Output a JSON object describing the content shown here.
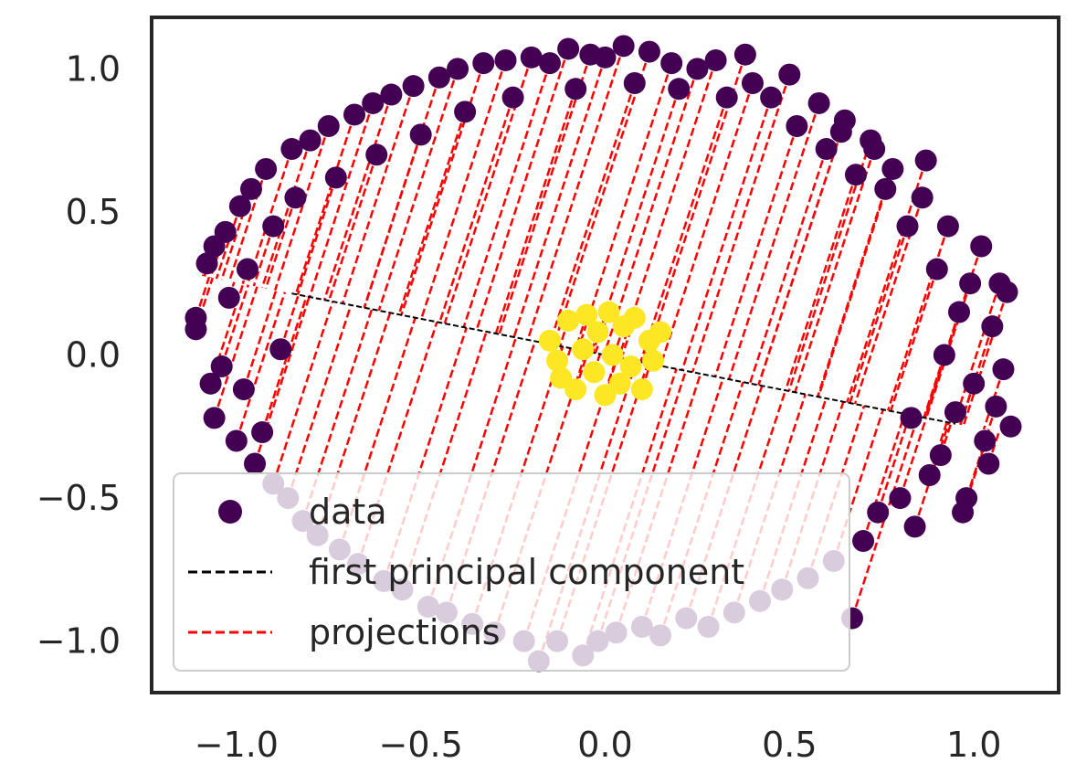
{
  "chart_data": {
    "type": "scatter",
    "title": "",
    "xlabel": "",
    "ylabel": "",
    "xlim": [
      -1.23,
      1.23
    ],
    "ylim": [
      -1.18,
      1.18
    ],
    "x_ticks": [
      -1.0,
      -0.5,
      0.0,
      0.5,
      1.0
    ],
    "y_ticks": [
      -1.0,
      -0.5,
      0.0,
      0.5,
      1.0
    ],
    "x_tick_labels": [
      "−1.0",
      "−0.5",
      "0.0",
      "0.5",
      "1.0"
    ],
    "y_tick_labels": [
      "−1.0",
      "−0.5",
      "0.0",
      "0.5",
      "1.0"
    ],
    "grid": false,
    "legend_position": "lower-left",
    "legend": [
      {
        "label": "data",
        "kind": "marker",
        "color": "#440154"
      },
      {
        "label": "first principal component",
        "kind": "dashed-line",
        "color": "#000000"
      },
      {
        "label": "projections",
        "kind": "dashed-line",
        "color": "#ff0000"
      }
    ],
    "colors": {
      "outer_class": "#440154",
      "inner_class": "#fde725",
      "first_principal_component": "#000000",
      "projections": "#ff0000"
    },
    "first_principal_component": {
      "slope": -0.253,
      "x_range": [
        -0.85,
        0.95
      ]
    },
    "series": [
      {
        "name": "data",
        "class": "outer",
        "points": [
          [
            -1.11,
            0.13
          ],
          [
            -1.11,
            0.09
          ],
          [
            -1.08,
            0.32
          ],
          [
            -1.06,
            0.38
          ],
          [
            -1.07,
            -0.1
          ],
          [
            -1.06,
            -0.22
          ],
          [
            -1.04,
            -0.04
          ],
          [
            -1.03,
            0.43
          ],
          [
            -1.02,
            0.2
          ],
          [
            -1.0,
            -0.3
          ],
          [
            -0.99,
            0.52
          ],
          [
            -0.98,
            -0.12
          ],
          [
            -0.97,
            0.3
          ],
          [
            -0.96,
            0.58
          ],
          [
            -0.95,
            -0.38
          ],
          [
            -0.93,
            -0.27
          ],
          [
            -0.92,
            0.65
          ],
          [
            -0.9,
            0.45
          ],
          [
            -0.9,
            -0.45
          ],
          [
            -0.88,
            0.02
          ],
          [
            -0.86,
            -0.5
          ],
          [
            -0.85,
            0.72
          ],
          [
            -0.84,
            0.55
          ],
          [
            -0.82,
            -0.58
          ],
          [
            -0.8,
            0.75
          ],
          [
            -0.78,
            -0.63
          ],
          [
            -0.75,
            0.8
          ],
          [
            -0.73,
            0.62
          ],
          [
            -0.72,
            -0.68
          ],
          [
            -0.68,
            0.84
          ],
          [
            -0.67,
            -0.73
          ],
          [
            -0.63,
            0.88
          ],
          [
            -0.62,
            0.7
          ],
          [
            -0.6,
            -0.79
          ],
          [
            -0.58,
            0.91
          ],
          [
            -0.55,
            -0.82
          ],
          [
            -0.52,
            0.94
          ],
          [
            -0.5,
            0.77
          ],
          [
            -0.48,
            -0.88
          ],
          [
            -0.45,
            0.97
          ],
          [
            -0.43,
            -0.9
          ],
          [
            -0.4,
            1.0
          ],
          [
            -0.38,
            0.85
          ],
          [
            -0.36,
            -0.94
          ],
          [
            -0.33,
            1.02
          ],
          [
            -0.3,
            -0.97
          ],
          [
            -0.27,
            1.03
          ],
          [
            -0.25,
            0.9
          ],
          [
            -0.22,
            -1.0
          ],
          [
            -0.2,
            1.04
          ],
          [
            -0.18,
            -1.07
          ],
          [
            -0.15,
            1.02
          ],
          [
            -0.13,
            -1.0
          ],
          [
            -0.1,
            1.07
          ],
          [
            -0.08,
            0.93
          ],
          [
            -0.06,
            -1.05
          ],
          [
            -0.04,
            1.05
          ],
          [
            -0.02,
            -1.0
          ],
          [
            0.0,
            1.04
          ],
          [
            0.03,
            -0.97
          ],
          [
            0.05,
            1.08
          ],
          [
            0.08,
            0.95
          ],
          [
            0.1,
            -0.95
          ],
          [
            0.12,
            1.06
          ],
          [
            0.15,
            -0.98
          ],
          [
            0.18,
            1.02
          ],
          [
            0.2,
            0.93
          ],
          [
            0.22,
            -0.92
          ],
          [
            0.25,
            1.0
          ],
          [
            0.28,
            -0.95
          ],
          [
            0.3,
            1.03
          ],
          [
            0.33,
            0.9
          ],
          [
            0.35,
            -0.9
          ],
          [
            0.38,
            1.05
          ],
          [
            0.4,
            0.95
          ],
          [
            0.42,
            -0.86
          ],
          [
            0.45,
            0.9
          ],
          [
            0.48,
            -0.82
          ],
          [
            0.5,
            0.98
          ],
          [
            0.52,
            0.8
          ],
          [
            0.55,
            -0.78
          ],
          [
            0.58,
            0.88
          ],
          [
            0.6,
            0.72
          ],
          [
            0.62,
            -0.72
          ],
          [
            0.65,
            0.82
          ],
          [
            0.67,
            -0.92
          ],
          [
            0.68,
            0.63
          ],
          [
            0.7,
            -0.65
          ],
          [
            0.72,
            0.75
          ],
          [
            0.74,
            -0.55
          ],
          [
            0.76,
            0.58
          ],
          [
            0.78,
            0.65
          ],
          [
            0.8,
            -0.5
          ],
          [
            0.82,
            0.45
          ],
          [
            0.84,
            -0.6
          ],
          [
            0.86,
            0.55
          ],
          [
            0.88,
            -0.42
          ],
          [
            0.9,
            0.3
          ],
          [
            0.91,
            -0.35
          ],
          [
            0.93,
            0.45
          ],
          [
            0.95,
            -0.2
          ],
          [
            0.96,
            0.15
          ],
          [
            0.98,
            -0.5
          ],
          [
            0.99,
            0.25
          ],
          [
            1.0,
            -0.1
          ],
          [
            1.02,
            0.38
          ],
          [
            1.03,
            -0.3
          ],
          [
            1.05,
            0.1
          ],
          [
            1.06,
            -0.18
          ],
          [
            1.07,
            0.25
          ],
          [
            1.08,
            -0.05
          ],
          [
            1.1,
            -0.25
          ],
          [
            1.09,
            0.22
          ],
          [
            1.04,
            -0.38
          ],
          [
            0.97,
            -0.55
          ],
          [
            0.92,
            0.0
          ],
          [
            0.87,
            0.68
          ],
          [
            0.83,
            -0.22
          ],
          [
            0.73,
            0.72
          ],
          [
            0.64,
            0.78
          ]
        ]
      },
      {
        "name": "data",
        "class": "inner",
        "points": [
          [
            -0.15,
            0.05
          ],
          [
            -0.12,
            -0.08
          ],
          [
            -0.1,
            0.12
          ],
          [
            -0.08,
            -0.12
          ],
          [
            -0.06,
            0.02
          ],
          [
            -0.05,
            0.14
          ],
          [
            -0.03,
            -0.06
          ],
          [
            -0.02,
            0.08
          ],
          [
            0.0,
            -0.14
          ],
          [
            0.01,
            0.15
          ],
          [
            0.02,
            0.0
          ],
          [
            0.04,
            -0.1
          ],
          [
            0.05,
            0.1
          ],
          [
            0.07,
            -0.04
          ],
          [
            0.08,
            0.13
          ],
          [
            0.1,
            -0.12
          ],
          [
            0.12,
            0.05
          ],
          [
            0.13,
            -0.02
          ],
          [
            0.15,
            0.08
          ],
          [
            -0.13,
            -0.02
          ]
        ]
      }
    ]
  }
}
